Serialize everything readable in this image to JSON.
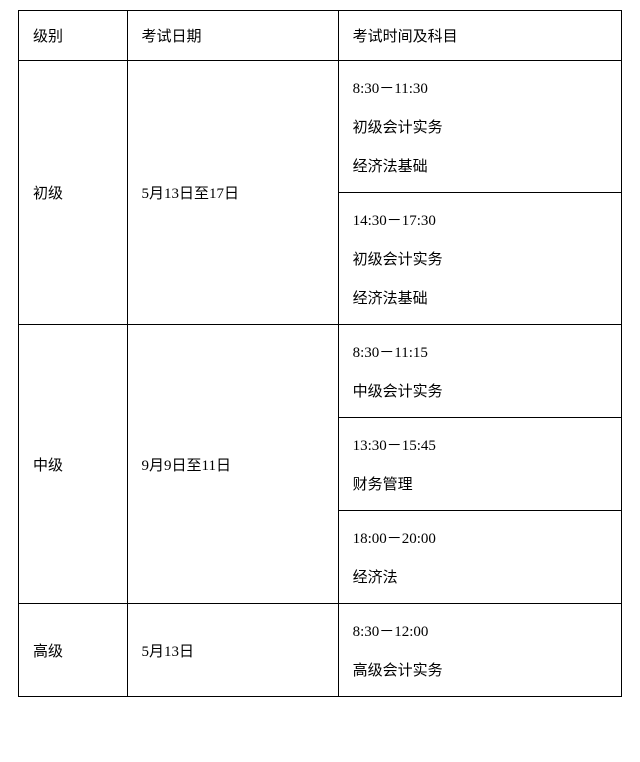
{
  "table": {
    "headers": {
      "level": "级别",
      "date": "考试日期",
      "schedule": "考试时间及科目"
    },
    "rows": [
      {
        "level": "初级",
        "date": "5月13日至17日",
        "sessions": [
          {
            "time": "8:30－11:30",
            "subject1": "初级会计实务",
            "subject2": "经济法基础"
          },
          {
            "time": "14:30－17:30",
            "subject1": "初级会计实务",
            "subject2": "经济法基础"
          }
        ]
      },
      {
        "level": "中级",
        "date": "9月9日至11日",
        "sessions": [
          {
            "time": "8:30－11:15",
            "subject1": "中级会计实务"
          },
          {
            "time": "13:30－15:45",
            "subject1": "财务管理"
          },
          {
            "time": "18:00－20:00",
            "subject1": "经济法"
          }
        ]
      },
      {
        "level": "高级",
        "date": "5月13日",
        "sessions": [
          {
            "time": "8:30－12:00",
            "subject1": "高级会计实务"
          }
        ]
      }
    ]
  },
  "colors": {
    "border": "#000000",
    "text": "#000000",
    "background": "#ffffff"
  },
  "font": {
    "family": "SimSun",
    "size_pt": 11
  }
}
